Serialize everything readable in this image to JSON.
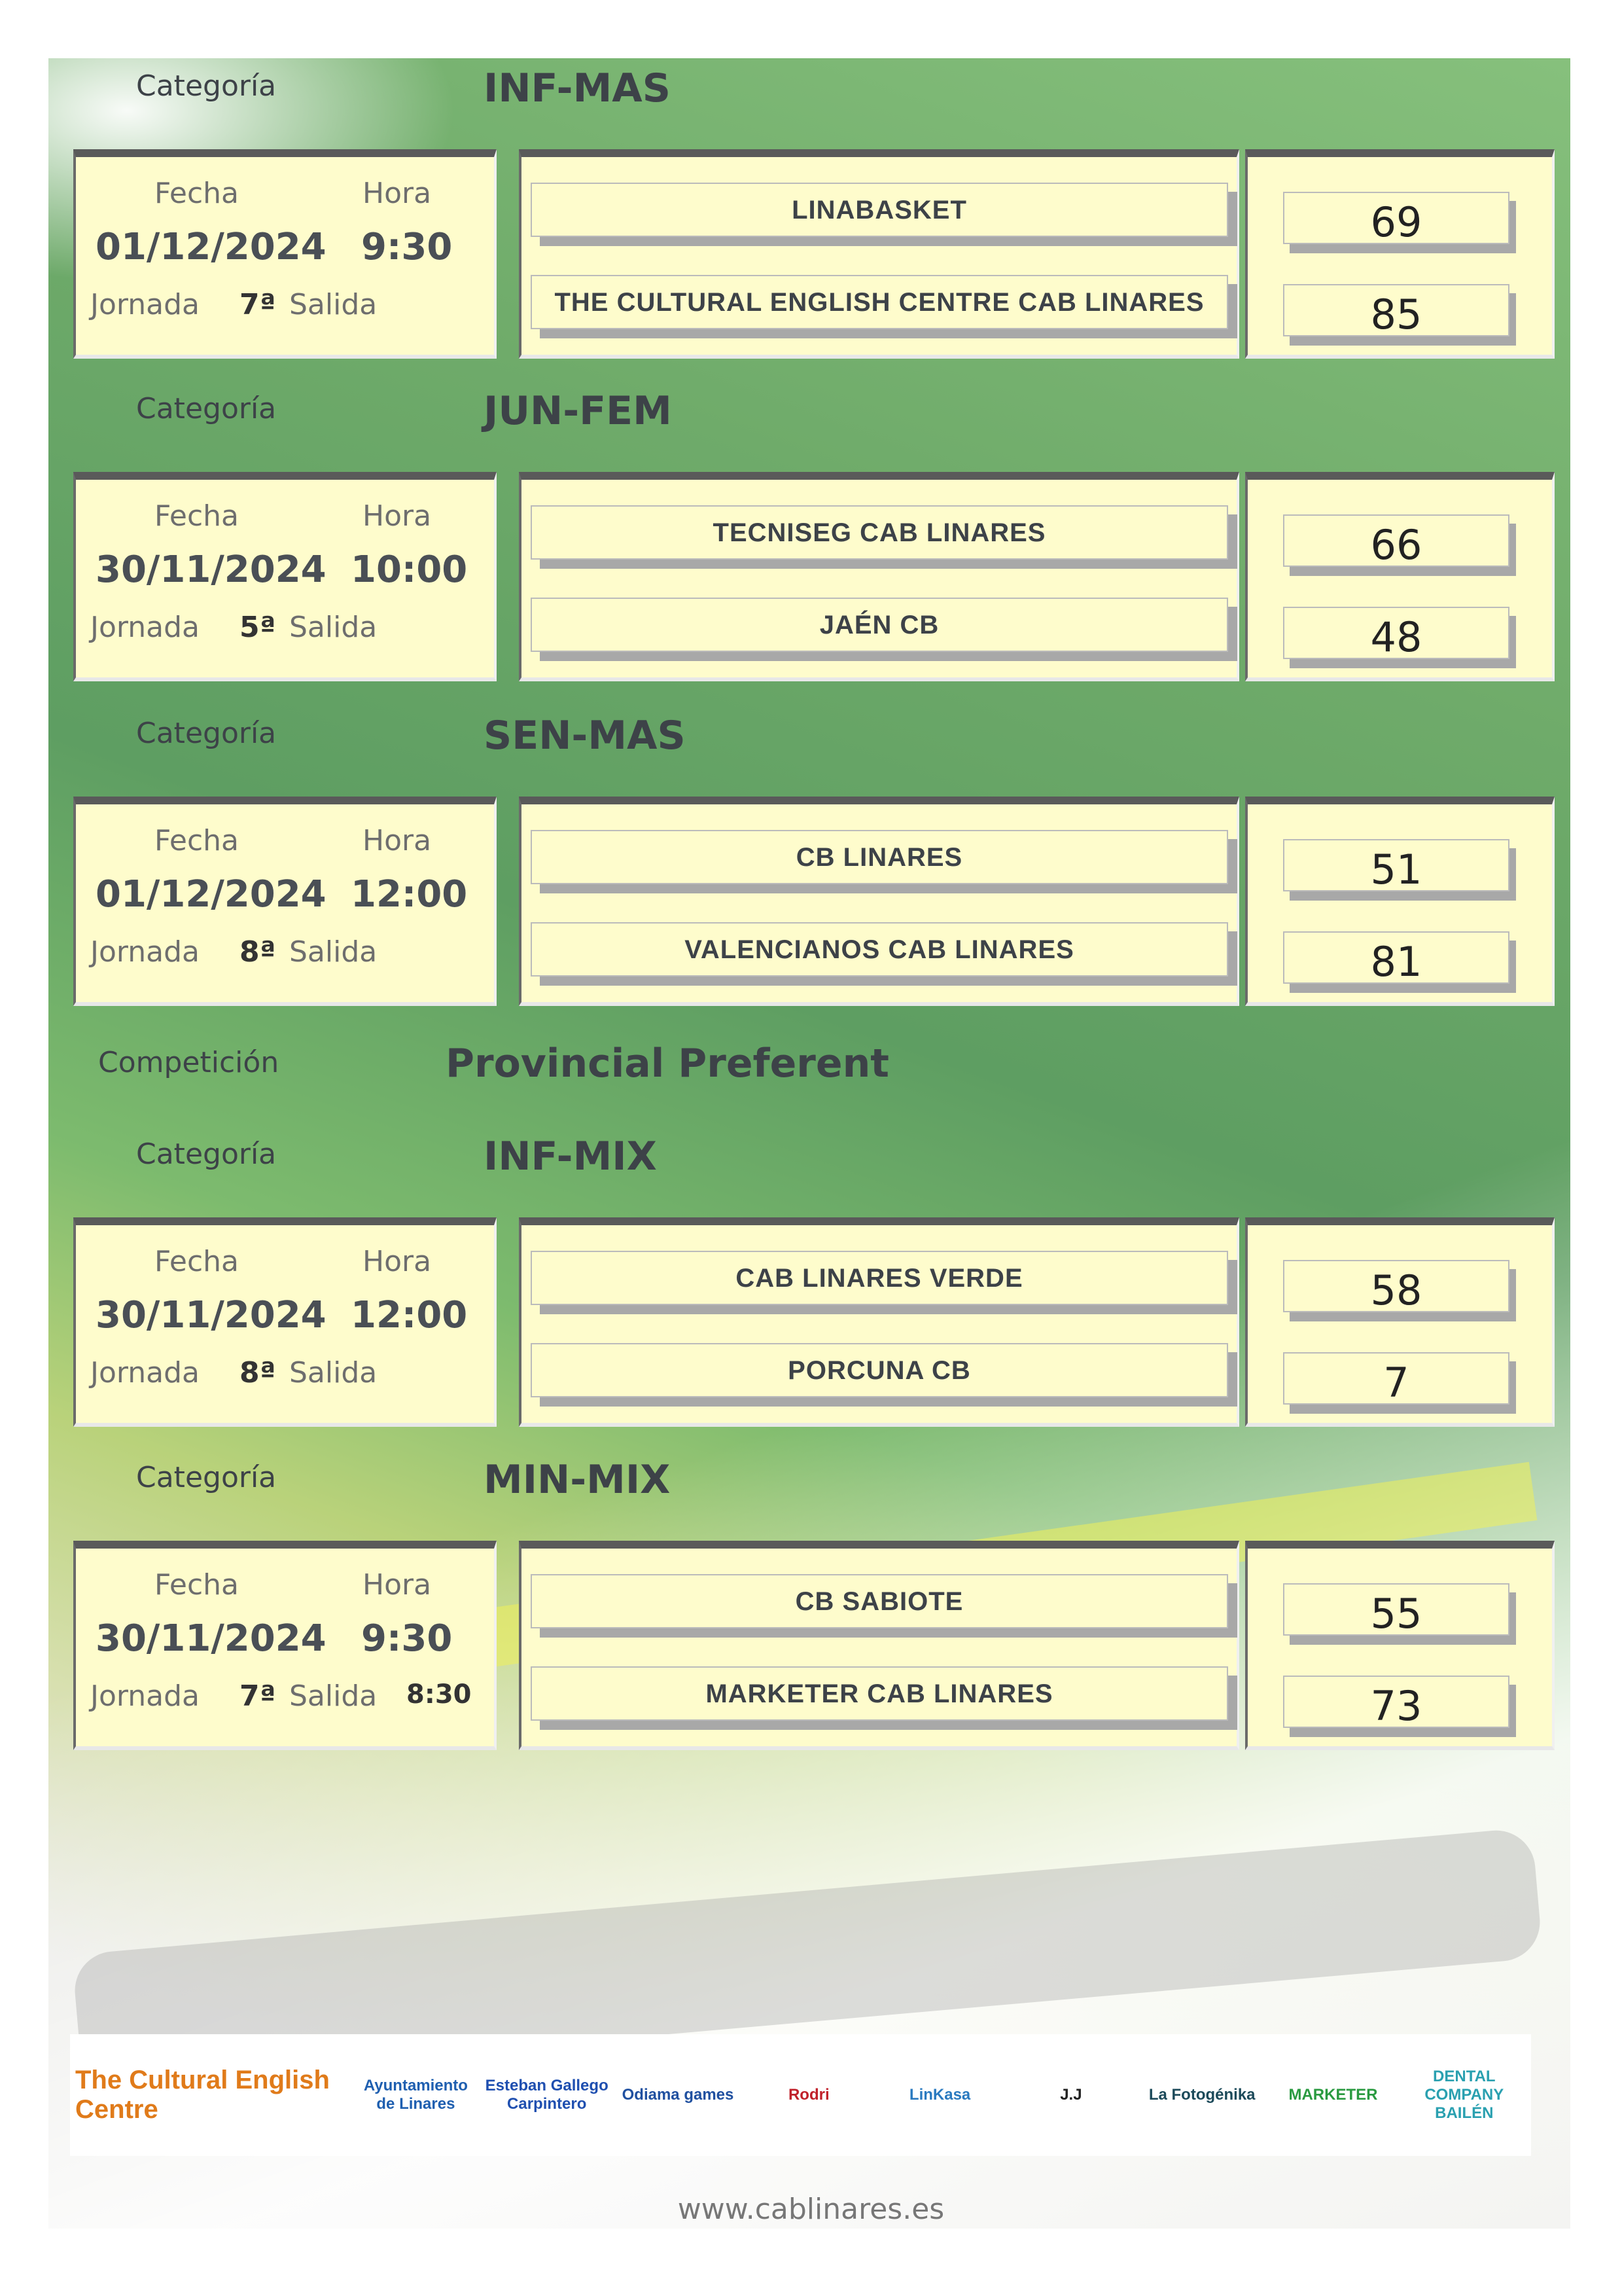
{
  "labels": {
    "categoria": "Categoría",
    "competicion": "Competición",
    "fecha": "Fecha",
    "hora": "Hora",
    "jornada": "Jornada",
    "salida": "Salida"
  },
  "competition": "Provincial Preferent",
  "matches": [
    {
      "category": "INF-MAS",
      "date": "01/12/2024",
      "time": "9:30",
      "round": "7ª",
      "salida": "",
      "home": "LINABASKET",
      "away": "THE CULTURAL ENGLISH CENTRE CAB LINARES",
      "home_score": "69",
      "away_score": "85"
    },
    {
      "category": "JUN-FEM",
      "date": "30/11/2024",
      "time": "10:00",
      "round": "5ª",
      "salida": "",
      "home": "TECNISEG CAB LINARES",
      "away": "JAÉN CB",
      "home_score": "66",
      "away_score": "48"
    },
    {
      "category": "SEN-MAS",
      "date": "01/12/2024",
      "time": "12:00",
      "round": "8ª",
      "salida": "",
      "home": "CB LINARES",
      "away": "VALENCIANOS CAB LINARES",
      "home_score": "51",
      "away_score": "81"
    },
    {
      "category": "INF-MIX",
      "date": "30/11/2024",
      "time": "12:00",
      "round": "8ª",
      "salida": "",
      "home": "CAB LINARES VERDE",
      "away": "PORCUNA CB",
      "home_score": "58",
      "away_score": "7"
    },
    {
      "category": "MIN-MIX",
      "date": "30/11/2024",
      "time": "9:30",
      "round": "7ª",
      "salida": "8:30",
      "home": "CB SABIOTE",
      "away": "MARKETER CAB LINARES",
      "home_score": "55",
      "away_score": "73"
    }
  ],
  "sponsors": [
    {
      "name": "The Cultural English Centre",
      "color": "#e07b1a"
    },
    {
      "name": "Ayuntamiento de Linares",
      "color": "#1f5fb0"
    },
    {
      "name": "Esteban Gallego Carpintero",
      "color": "#1f4fb0"
    },
    {
      "name": "Odiama games",
      "color": "#2050a0"
    },
    {
      "name": "Rodri",
      "color": "#c0202a"
    },
    {
      "name": "LinKasa",
      "color": "#2a7ac0"
    },
    {
      "name": "J.J",
      "color": "#222222"
    },
    {
      "name": "La Fotogénika",
      "color": "#1c4a5a"
    },
    {
      "name": "MARKETER",
      "color": "#2a9a40"
    },
    {
      "name": "DENTAL COMPANY BAILÉN",
      "color": "#2aa0b0"
    }
  ],
  "website": "www.cablinares.es"
}
